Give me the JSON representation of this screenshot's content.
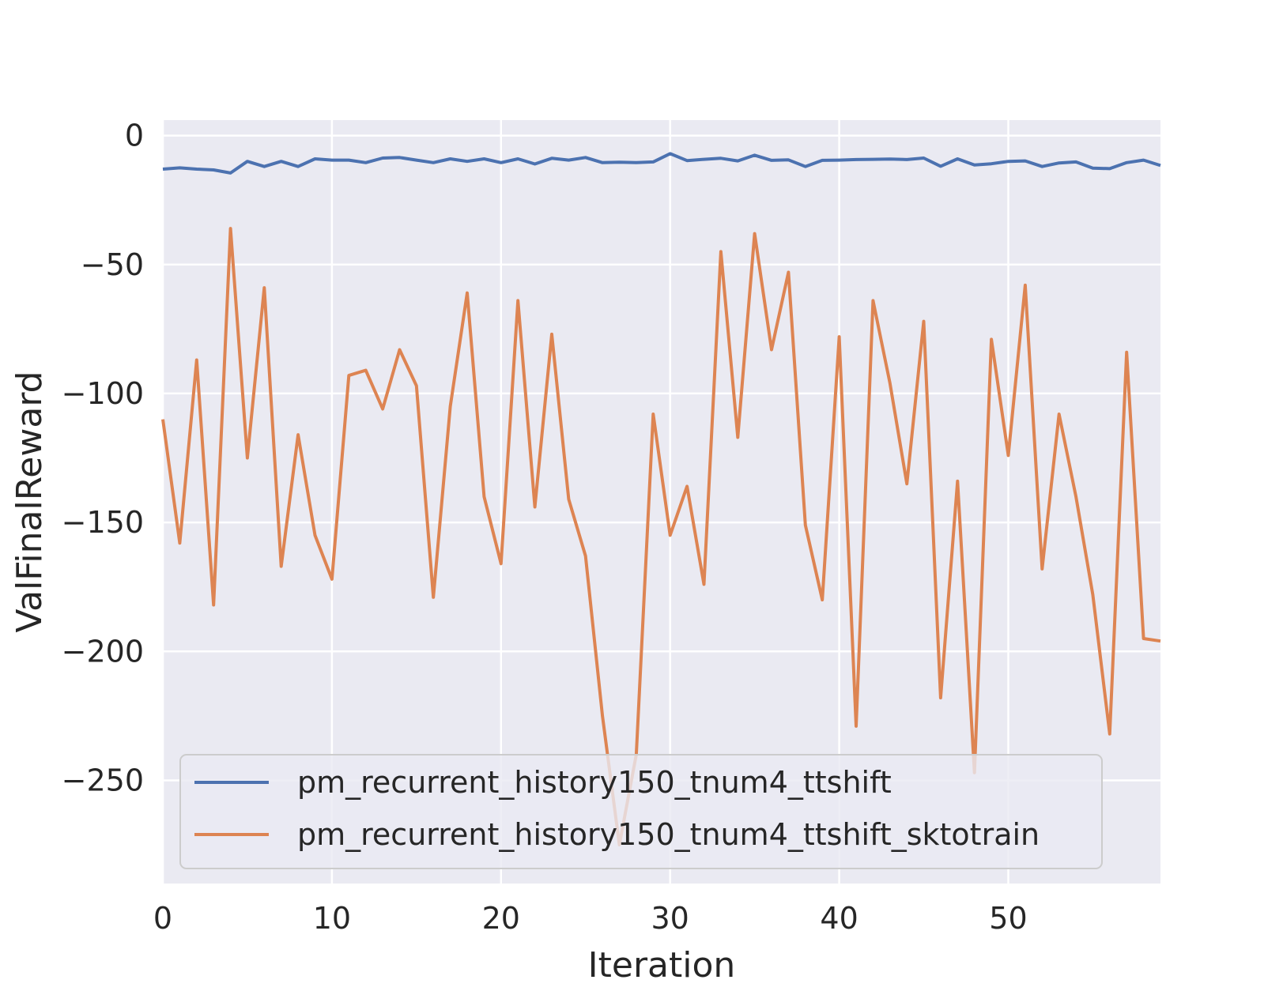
{
  "chart_data": {
    "type": "line",
    "xlabel": "Iteration",
    "ylabel": "ValFinalReward",
    "xlim": [
      0,
      59
    ],
    "ylim": [
      -290,
      6
    ],
    "xticks": [
      0,
      10,
      20,
      30,
      40,
      50
    ],
    "yticks": [
      0,
      -50,
      -100,
      -150,
      -200,
      -250
    ],
    "ytick_labels": [
      "0",
      "−50",
      "−100",
      "−150",
      "−200",
      "−250"
    ],
    "grid": true,
    "legend_position": "lower-left",
    "colors": {
      "background": "#eaeaf2",
      "grid": "#ffffff",
      "series_1": "#4c72b0",
      "series_2": "#dd8452"
    },
    "x": [
      0,
      1,
      2,
      3,
      4,
      5,
      6,
      7,
      8,
      9,
      10,
      11,
      12,
      13,
      14,
      15,
      16,
      17,
      18,
      19,
      20,
      21,
      22,
      23,
      24,
      25,
      26,
      27,
      28,
      29,
      30,
      31,
      32,
      33,
      34,
      35,
      36,
      37,
      38,
      39,
      40,
      41,
      42,
      43,
      44,
      45,
      46,
      47,
      48,
      49,
      50,
      51,
      52,
      53,
      54,
      55,
      56,
      57,
      58,
      59
    ],
    "series": [
      {
        "name": "pm_recurrent_history150_tnum4_ttshift",
        "values": [
          -13,
          -12.5,
          -13,
          -13.3,
          -14.5,
          -10,
          -12,
          -10,
          -12,
          -9,
          -9.5,
          -9.5,
          -10.5,
          -8.7,
          -8.5,
          -9.5,
          -10.5,
          -9,
          -10,
          -9,
          -10.5,
          -9,
          -11,
          -8.8,
          -9.5,
          -8.5,
          -10.5,
          -10.3,
          -10.5,
          -10.2,
          -7,
          -9.7,
          -9.2,
          -8.8,
          -9.8,
          -7.6,
          -9.6,
          -9.4,
          -12,
          -9.6,
          -9.5,
          -9.3,
          -9.2,
          -9.1,
          -9.3,
          -8.7,
          -11.9,
          -9,
          -11.4,
          -10.9,
          -10,
          -9.8,
          -12,
          -10.6,
          -10.2,
          -12.6,
          -12.8,
          -10.5,
          -9.5,
          -11.6
        ]
      },
      {
        "name": "pm_recurrent_history150_tnum4_ttshift_sktotrain",
        "values": [
          -110,
          -158,
          -87,
          -182,
          -36,
          -125,
          -59,
          -167,
          -116,
          -155,
          -172,
          -93,
          -91,
          -106,
          -83,
          -97,
          -179,
          -105,
          -61,
          -140,
          -166,
          -64,
          -144,
          -77,
          -141,
          -163,
          -225,
          -275,
          -240,
          -108,
          -155,
          -136,
          -174,
          -45,
          -117,
          -38,
          -83,
          -53,
          -151,
          -180,
          -78,
          -229,
          -64,
          -96,
          -135,
          -72,
          -218,
          -134,
          -247,
          -79,
          -124,
          -58,
          -168,
          -108,
          -140,
          -178,
          -232,
          -84,
          -195,
          -196
        ]
      }
    ]
  }
}
